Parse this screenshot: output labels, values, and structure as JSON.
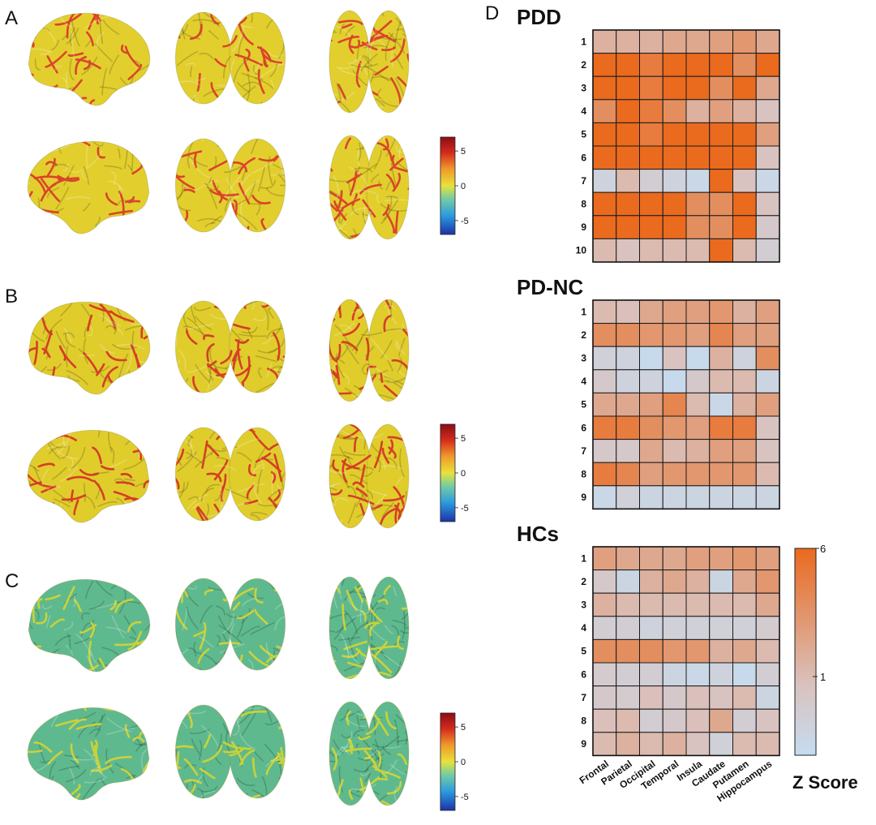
{
  "chart_data": [
    {
      "type": "brain_surface_maps",
      "panel": "A",
      "views": [
        "lateral-left",
        "posterior",
        "superior",
        "lateral-right",
        "anterior",
        "inferior"
      ],
      "colorbar": {
        "ticks": [
          5,
          0,
          -5
        ],
        "range": [
          -7,
          7
        ]
      },
      "colors": {
        "base": "#e2cf2e",
        "highlight": "#d9452a"
      }
    },
    {
      "type": "brain_surface_maps",
      "panel": "B",
      "views": [
        "lateral-left",
        "posterior",
        "superior",
        "lateral-right",
        "anterior",
        "inferior"
      ],
      "colorbar": {
        "ticks": [
          5,
          0,
          -5
        ],
        "range": [
          -7,
          7
        ]
      },
      "colors": {
        "base": "#e0cd2c",
        "highlight": "#d43f25"
      }
    },
    {
      "type": "brain_surface_maps",
      "panel": "C",
      "views": [
        "lateral-left",
        "posterior",
        "superior",
        "lateral-right",
        "anterior",
        "inferior"
      ],
      "colorbar": {
        "ticks": [
          5,
          0,
          -5
        ],
        "range": [
          -7,
          7
        ]
      },
      "colors": {
        "base": "#5fb98e",
        "highlight": "#c9d23a"
      }
    },
    {
      "type": "heatmap",
      "panel": "D",
      "title": "PDD",
      "rows": [
        "1",
        "2",
        "3",
        "4",
        "5",
        "6",
        "7",
        "8",
        "9",
        "10"
      ],
      "columns": [
        "Frontal",
        "Parietal",
        "Occipital",
        "Temporal",
        "Insula",
        "Caudate",
        "Putamen",
        "Hippocampus"
      ],
      "values": [
        [
          2,
          2,
          2,
          2.5,
          2.5,
          3,
          3.5,
          2.5
        ],
        [
          6,
          6,
          5,
          6,
          6,
          6,
          4,
          6
        ],
        [
          6,
          6,
          5,
          6,
          6,
          4,
          6,
          2.5
        ],
        [
          4,
          6,
          5,
          4,
          2,
          3,
          2,
          1
        ],
        [
          6,
          6,
          5,
          6,
          6,
          6,
          6,
          3
        ],
        [
          6,
          6,
          6,
          6,
          6,
          6,
          6,
          1
        ],
        [
          0.4,
          1.5,
          0.6,
          0.4,
          0.2,
          6,
          1,
          0.2
        ],
        [
          6,
          6,
          6,
          6,
          4,
          4,
          6,
          1
        ],
        [
          6,
          6,
          6,
          6,
          4,
          4,
          6,
          0.8
        ],
        [
          1.5,
          1,
          1.5,
          1.5,
          1.5,
          6,
          1.5,
          0.6
        ]
      ]
    },
    {
      "type": "heatmap",
      "panel": "D",
      "title": "PD-NC",
      "rows": [
        "1",
        "2",
        "3",
        "4",
        "5",
        "6",
        "7",
        "8",
        "9"
      ],
      "columns": [
        "Frontal",
        "Parietal",
        "Occipital",
        "Temporal",
        "Insula",
        "Caudate",
        "Putamen",
        "Hippocampus"
      ],
      "values": [
        [
          1.5,
          1.2,
          2.5,
          3,
          3,
          3.5,
          2,
          3
        ],
        [
          4,
          4,
          3.5,
          3.5,
          3,
          4.5,
          3,
          3
        ],
        [
          0.5,
          0.4,
          0.1,
          1,
          0.1,
          2,
          0.4,
          4
        ],
        [
          0.8,
          0.4,
          0.4,
          0.1,
          0.8,
          1.5,
          1.5,
          0.3
        ],
        [
          2.5,
          2.5,
          3,
          4.5,
          1.5,
          0.2,
          2,
          3
        ],
        [
          5,
          5,
          4,
          3.5,
          3,
          5,
          5,
          1
        ],
        [
          0.8,
          0.8,
          2.5,
          1.5,
          2,
          3,
          3,
          1
        ],
        [
          5,
          4.5,
          3,
          3.5,
          3.5,
          3.5,
          3.5,
          1.5
        ],
        [
          0.2,
          0.5,
          0.3,
          0.3,
          0.3,
          0.3,
          0.3,
          0.3
        ]
      ]
    },
    {
      "type": "heatmap",
      "panel": "D",
      "title": "HCs",
      "rows": [
        "1",
        "2",
        "3",
        "4",
        "5",
        "6",
        "7",
        "8",
        "9"
      ],
      "columns": [
        "Frontal",
        "Parietal",
        "Occipital",
        "Temporal",
        "Insula",
        "Caudate",
        "Putamen",
        "Hippocampus"
      ],
      "values": [
        [
          3,
          2.5,
          2.5,
          2.5,
          3,
          3,
          3.5,
          3
        ],
        [
          0.8,
          0.3,
          2,
          2.5,
          2,
          0.3,
          2.5,
          3.5
        ],
        [
          2,
          1.5,
          1.5,
          1.5,
          1.5,
          1.5,
          1.5,
          2.5
        ],
        [
          0.6,
          0.6,
          0.4,
          0.5,
          0.5,
          0.5,
          0.5,
          0.7
        ],
        [
          4,
          4,
          4,
          3.5,
          3.5,
          2,
          2.5,
          1.5
        ],
        [
          0.7,
          0.6,
          0.6,
          0.3,
          0.2,
          0.4,
          0.1,
          0.6
        ],
        [
          0.8,
          0.7,
          1.2,
          0.8,
          1.2,
          1,
          1.5,
          0.3
        ],
        [
          1.2,
          1.5,
          0.6,
          0.8,
          1.2,
          2.5,
          0.6,
          1
        ],
        [
          1.5,
          2,
          1.5,
          2,
          1,
          0.5,
          1.5,
          1.5
        ]
      ]
    }
  ],
  "panel_labels": {
    "a": "A",
    "b": "B",
    "c": "C",
    "d": "D"
  },
  "z_colorbar": {
    "title": "Z Score",
    "tick_top": "6",
    "tick_mid": "1",
    "range": [
      0,
      6
    ],
    "mid_value": 1,
    "colors": {
      "low": "#c5dcf0",
      "mid": "#d9c3c0",
      "high": "#ea6a1e"
    }
  },
  "diverging_colorbar": {
    "tick_5": "5",
    "tick_0": "0",
    "tick_neg5": "-5",
    "colors": [
      "#1c33a8",
      "#2c9ee0",
      "#7fcf9a",
      "#e8e23a",
      "#f09a2a",
      "#d42a1d",
      "#8a0f14"
    ]
  }
}
